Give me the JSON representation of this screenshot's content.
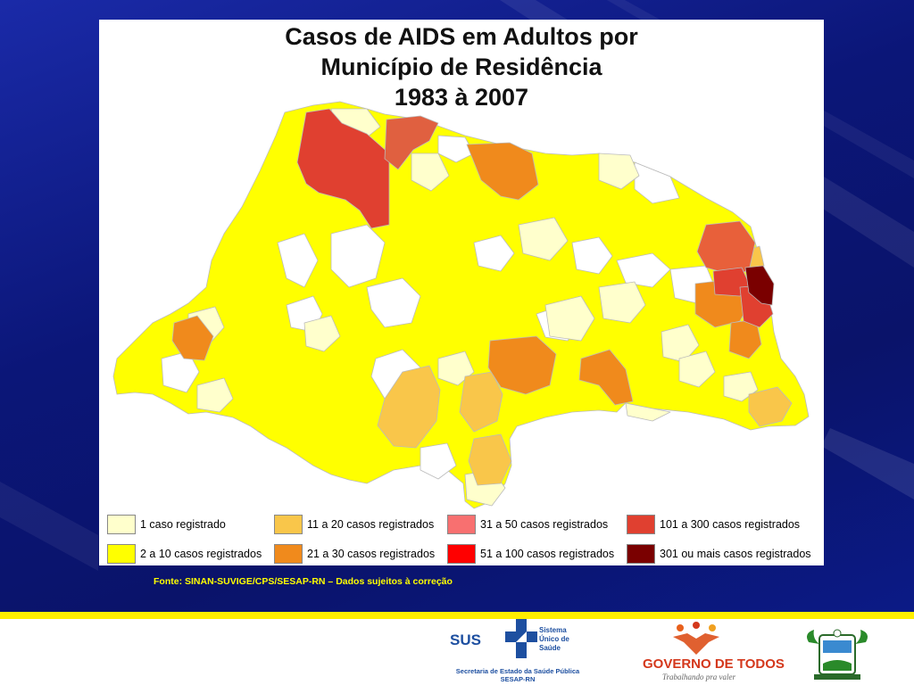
{
  "title": {
    "line1": "Casos de AIDS em Adultos por",
    "line2": "Município de Residência",
    "line3": "1983 à 2007"
  },
  "colors": {
    "c1": "#ffffcc",
    "c2": "#ffff00",
    "c3": "#f9c64a",
    "c4": "#f08a1c",
    "c5": "#f87070",
    "c6": "#ff0000",
    "c7": "#e04030",
    "c8": "#7a0000",
    "none": "#ffffff"
  },
  "legend": [
    {
      "label": "1 caso registrado",
      "color": "#ffffcc"
    },
    {
      "label": "2 a 10 casos registrados",
      "color": "#ffff00"
    },
    {
      "label": "11 a 20 casos registrados",
      "color": "#f9c64a"
    },
    {
      "label": "21 a 30 casos registrados",
      "color": "#f08a1c"
    },
    {
      "label": "31 a 50 casos registrados",
      "color": "#f87070"
    },
    {
      "label": "51 a 100 casos registrados",
      "color": "#ff0000"
    },
    {
      "label": "101 a 300 casos registrados",
      "color": "#e04030"
    },
    {
      "label": "301 ou mais casos registrados",
      "color": "#7a0000"
    }
  ],
  "source": "Fonte: SINAN-SUVIGE/CPS/SESAP-RN – Dados sujeitos à correção",
  "footer": {
    "sus_label": "SUS",
    "sus_line1": "Sistema",
    "sus_line2": "Único de",
    "sus_line3": "Saúde",
    "sus_secretaria": "Secretaria de Estado da Saúde Pública",
    "sus_acronym": "SESAP-RN",
    "gov_label": "GOVERNO DE TODOS",
    "gov_slogan": "Trabalhando pra valer"
  }
}
